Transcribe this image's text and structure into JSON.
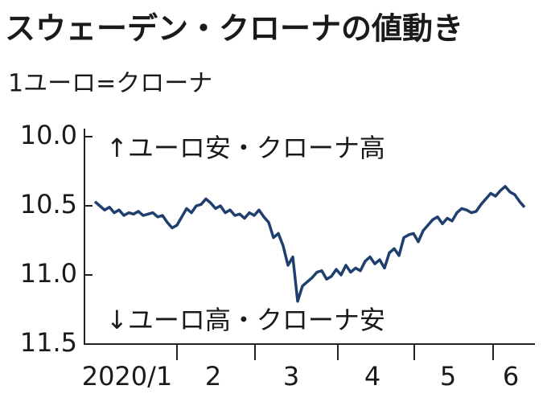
{
  "chart_data": {
    "type": "line",
    "title": "スウェーデン・クローナの値動き",
    "subtitle": "1ユーロ=クローナ",
    "annotations": [
      "↑ユーロ安・クローナ高",
      "↓ユーロ高・クローナ安"
    ],
    "months": [
      "2020/1",
      "2",
      "3",
      "4",
      "5",
      "6"
    ],
    "y_inverted": true,
    "ylim": [
      10.0,
      11.5
    ],
    "yticks": [
      {
        "value": 10.0,
        "label": "10.0"
      },
      10.5,
      {
        "value": 11.0,
        "label": "11.0"
      },
      11.5
    ],
    "series": [
      {
        "color": "#1f3f6e",
        "values": [
          10.47,
          10.5,
          10.53,
          10.51,
          10.55,
          10.53,
          10.57,
          10.55,
          10.56,
          10.54,
          10.57,
          10.56,
          10.55,
          10.58,
          10.57,
          10.62,
          10.66,
          10.64,
          10.58,
          10.52,
          10.55,
          10.5,
          10.49,
          10.45,
          10.48,
          10.52,
          10.5,
          10.55,
          10.53,
          10.57,
          10.56,
          10.59,
          10.55,
          10.57,
          10.53,
          10.58,
          10.62,
          10.73,
          10.7,
          10.79,
          10.93,
          10.87,
          11.19,
          11.08,
          11.05,
          11.02,
          10.98,
          10.97,
          11.03,
          11.01,
          10.96,
          11.0,
          10.93,
          10.98,
          10.95,
          10.97,
          10.9,
          10.87,
          10.92,
          10.89,
          10.95,
          10.84,
          10.81,
          10.86,
          10.73,
          10.71,
          10.7,
          10.76,
          10.68,
          10.64,
          10.6,
          10.58,
          10.63,
          10.59,
          10.61,
          10.55,
          10.52,
          10.53,
          10.55,
          10.54,
          10.49,
          10.45,
          10.41,
          10.43,
          10.39,
          10.36,
          10.4,
          10.42,
          10.47,
          10.51
        ]
      }
    ]
  }
}
